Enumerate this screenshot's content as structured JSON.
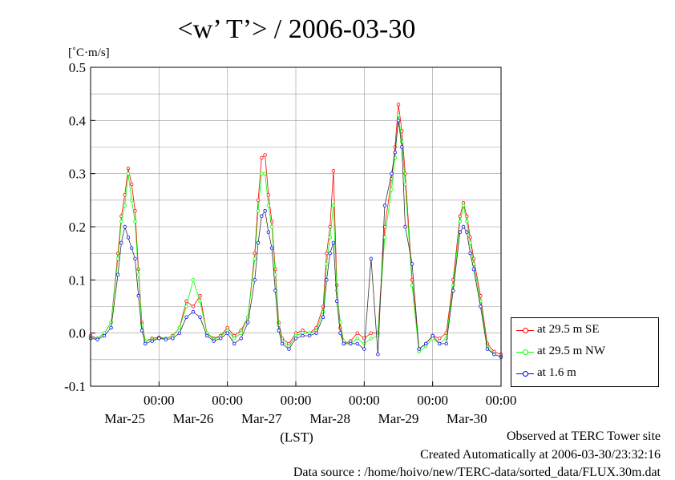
{
  "chart_data": {
    "type": "line",
    "title": "<w’ T’> / 2006-03-30",
    "ylabel": "[˚C·m/s]",
    "xlabel": "(LST)",
    "ylim": [
      -0.1,
      0.5
    ],
    "yticks": [
      "0.5",
      "0.4",
      "0.3",
      "0.2",
      "0.1",
      "0.0",
      "-0.1"
    ],
    "ytick_values": [
      0.5,
      0.4,
      0.3,
      0.2,
      0.1,
      0.0,
      -0.1
    ],
    "xlim": [
      0,
      6
    ],
    "xticks": [
      {
        "time": "00:00",
        "date": "Mar-25",
        "x": 1
      },
      {
        "time": "00:00",
        "date": "Mar-26",
        "x": 2
      },
      {
        "time": "00:00",
        "date": "Mar-27",
        "x": 3
      },
      {
        "time": "00:00",
        "date": "Mar-28",
        "x": 4
      },
      {
        "time": "00:00",
        "date": "Mar-29",
        "x": 5
      },
      {
        "time": "00:00",
        "date": "Mar-30",
        "x": 6
      }
    ],
    "grid": true,
    "legend_position": "right",
    "series": [
      {
        "name": "at 29.5 m SE",
        "color": "#ff0000",
        "points": [
          [
            0.0,
            -0.005
          ],
          [
            0.1,
            -0.01
          ],
          [
            0.2,
            0.0
          ],
          [
            0.3,
            0.02
          ],
          [
            0.4,
            0.15
          ],
          [
            0.45,
            0.22
          ],
          [
            0.5,
            0.26
          ],
          [
            0.55,
            0.31
          ],
          [
            0.6,
            0.28
          ],
          [
            0.65,
            0.23
          ],
          [
            0.7,
            0.12
          ],
          [
            0.75,
            0.02
          ],
          [
            0.8,
            -0.015
          ],
          [
            0.9,
            -0.01
          ],
          [
            1.0,
            -0.008
          ],
          [
            1.1,
            -0.01
          ],
          [
            1.2,
            -0.005
          ],
          [
            1.3,
            0.01
          ],
          [
            1.4,
            0.06
          ],
          [
            1.5,
            0.05
          ],
          [
            1.6,
            0.07
          ],
          [
            1.7,
            0.0
          ],
          [
            1.8,
            -0.01
          ],
          [
            1.9,
            -0.005
          ],
          [
            2.0,
            0.01
          ],
          [
            2.1,
            -0.005
          ],
          [
            2.2,
            0.005
          ],
          [
            2.3,
            0.03
          ],
          [
            2.4,
            0.15
          ],
          [
            2.45,
            0.25
          ],
          [
            2.5,
            0.33
          ],
          [
            2.55,
            0.335
          ],
          [
            2.6,
            0.26
          ],
          [
            2.65,
            0.21
          ],
          [
            2.7,
            0.12
          ],
          [
            2.75,
            0.02
          ],
          [
            2.8,
            -0.01
          ],
          [
            2.9,
            -0.02
          ],
          [
            3.0,
            0.0
          ],
          [
            3.1,
            0.005
          ],
          [
            3.2,
            0.0
          ],
          [
            3.3,
            0.01
          ],
          [
            3.4,
            0.05
          ],
          [
            3.45,
            0.15
          ],
          [
            3.5,
            0.2
          ],
          [
            3.55,
            0.305
          ],
          [
            3.6,
            0.09
          ],
          [
            3.65,
            0.01
          ],
          [
            3.7,
            -0.02
          ],
          [
            3.8,
            -0.015
          ],
          [
            3.9,
            0.0
          ],
          [
            4.0,
            -0.01
          ],
          [
            4.1,
            0.0
          ],
          [
            4.2,
            0.0
          ],
          [
            4.3,
            0.2
          ],
          [
            4.4,
            0.29
          ],
          [
            4.45,
            0.35
          ],
          [
            4.5,
            0.43
          ],
          [
            4.55,
            0.38
          ],
          [
            4.6,
            0.3
          ],
          [
            4.7,
            0.1
          ],
          [
            4.8,
            -0.03
          ],
          [
            4.9,
            -0.02
          ],
          [
            5.0,
            -0.005
          ],
          [
            5.1,
            -0.01
          ],
          [
            5.2,
            0.0
          ],
          [
            5.3,
            0.1
          ],
          [
            5.4,
            0.22
          ],
          [
            5.45,
            0.245
          ],
          [
            5.5,
            0.22
          ],
          [
            5.55,
            0.18
          ],
          [
            5.6,
            0.14
          ],
          [
            5.7,
            0.07
          ],
          [
            5.8,
            -0.02
          ],
          [
            5.9,
            -0.035
          ],
          [
            6.0,
            -0.04
          ]
        ]
      },
      {
        "name": "at 29.5 m NW",
        "color": "#00ff00",
        "points": [
          [
            0.0,
            -0.008
          ],
          [
            0.1,
            -0.01
          ],
          [
            0.2,
            0.0
          ],
          [
            0.3,
            0.02
          ],
          [
            0.4,
            0.14
          ],
          [
            0.45,
            0.21
          ],
          [
            0.5,
            0.24
          ],
          [
            0.55,
            0.3
          ],
          [
            0.6,
            0.25
          ],
          [
            0.65,
            0.21
          ],
          [
            0.7,
            0.11
          ],
          [
            0.75,
            0.015
          ],
          [
            0.8,
            -0.015
          ],
          [
            0.9,
            -0.012
          ],
          [
            1.0,
            -0.01
          ],
          [
            1.1,
            -0.01
          ],
          [
            1.2,
            -0.006
          ],
          [
            1.3,
            0.01
          ],
          [
            1.4,
            0.05
          ],
          [
            1.5,
            0.1
          ],
          [
            1.6,
            0.06
          ],
          [
            1.7,
            0.0
          ],
          [
            1.8,
            -0.012
          ],
          [
            1.9,
            -0.006
          ],
          [
            2.0,
            0.005
          ],
          [
            2.1,
            -0.01
          ],
          [
            2.2,
            0.0
          ],
          [
            2.3,
            0.03
          ],
          [
            2.4,
            0.14
          ],
          [
            2.45,
            0.23
          ],
          [
            2.5,
            0.3
          ],
          [
            2.55,
            0.3
          ],
          [
            2.6,
            0.24
          ],
          [
            2.65,
            0.2
          ],
          [
            2.7,
            0.11
          ],
          [
            2.75,
            0.015
          ],
          [
            2.8,
            -0.015
          ],
          [
            2.9,
            -0.025
          ],
          [
            3.0,
            -0.005
          ],
          [
            3.1,
            0.0
          ],
          [
            3.2,
            0.0
          ],
          [
            3.3,
            0.005
          ],
          [
            3.4,
            0.04
          ],
          [
            3.45,
            0.13
          ],
          [
            3.5,
            0.18
          ],
          [
            3.55,
            0.24
          ],
          [
            3.6,
            0.08
          ],
          [
            3.65,
            0.02
          ],
          [
            3.7,
            -0.015
          ],
          [
            3.8,
            -0.02
          ],
          [
            3.9,
            -0.01
          ],
          [
            4.0,
            -0.02
          ],
          [
            4.1,
            -0.01
          ],
          [
            4.2,
            -0.005
          ],
          [
            4.3,
            0.18
          ],
          [
            4.4,
            0.27
          ],
          [
            4.45,
            0.33
          ],
          [
            4.5,
            0.41
          ],
          [
            4.55,
            0.36
          ],
          [
            4.6,
            0.28
          ],
          [
            4.7,
            0.09
          ],
          [
            4.8,
            -0.035
          ],
          [
            4.9,
            -0.025
          ],
          [
            5.0,
            -0.01
          ],
          [
            5.1,
            -0.02
          ],
          [
            5.2,
            -0.01
          ],
          [
            5.3,
            0.09
          ],
          [
            5.4,
            0.21
          ],
          [
            5.45,
            0.24
          ],
          [
            5.5,
            0.21
          ],
          [
            5.55,
            0.17
          ],
          [
            5.6,
            0.13
          ],
          [
            5.7,
            0.06
          ],
          [
            5.8,
            -0.025
          ],
          [
            5.9,
            -0.04
          ],
          [
            6.0,
            -0.045
          ]
        ]
      },
      {
        "name": "at 1.6 m",
        "color": "#0000ff",
        "points": [
          [
            0.0,
            -0.01
          ],
          [
            0.1,
            -0.012
          ],
          [
            0.2,
            -0.005
          ],
          [
            0.3,
            0.01
          ],
          [
            0.4,
            0.11
          ],
          [
            0.45,
            0.17
          ],
          [
            0.5,
            0.2
          ],
          [
            0.55,
            0.18
          ],
          [
            0.6,
            0.16
          ],
          [
            0.65,
            0.14
          ],
          [
            0.7,
            0.07
          ],
          [
            0.75,
            0.005
          ],
          [
            0.8,
            -0.02
          ],
          [
            0.9,
            -0.015
          ],
          [
            1.0,
            -0.01
          ],
          [
            1.1,
            -0.012
          ],
          [
            1.2,
            -0.01
          ],
          [
            1.3,
            0.0
          ],
          [
            1.4,
            0.03
          ],
          [
            1.5,
            0.04
          ],
          [
            1.6,
            0.03
          ],
          [
            1.7,
            -0.005
          ],
          [
            1.8,
            -0.015
          ],
          [
            1.9,
            -0.01
          ],
          [
            2.0,
            0.0
          ],
          [
            2.1,
            -0.02
          ],
          [
            2.2,
            -0.01
          ],
          [
            2.3,
            0.02
          ],
          [
            2.4,
            0.1
          ],
          [
            2.45,
            0.17
          ],
          [
            2.5,
            0.22
          ],
          [
            2.55,
            0.23
          ],
          [
            2.6,
            0.19
          ],
          [
            2.65,
            0.16
          ],
          [
            2.7,
            0.08
          ],
          [
            2.75,
            0.005
          ],
          [
            2.8,
            -0.02
          ],
          [
            2.9,
            -0.03
          ],
          [
            3.0,
            -0.01
          ],
          [
            3.1,
            -0.005
          ],
          [
            3.2,
            -0.005
          ],
          [
            3.3,
            0.0
          ],
          [
            3.4,
            0.03
          ],
          [
            3.45,
            0.1
          ],
          [
            3.5,
            0.15
          ],
          [
            3.55,
            0.17
          ],
          [
            3.6,
            0.06
          ],
          [
            3.65,
            0.0
          ],
          [
            3.7,
            -0.02
          ],
          [
            3.8,
            -0.02
          ],
          [
            3.9,
            -0.02
          ],
          [
            4.0,
            -0.03
          ],
          [
            4.1,
            0.14
          ],
          [
            4.2,
            -0.04
          ],
          [
            4.3,
            0.24
          ],
          [
            4.4,
            0.3
          ],
          [
            4.45,
            0.34
          ],
          [
            4.5,
            0.4
          ],
          [
            4.55,
            0.35
          ],
          [
            4.6,
            0.2
          ],
          [
            4.7,
            0.13
          ],
          [
            4.8,
            -0.03
          ],
          [
            4.9,
            -0.02
          ],
          [
            5.0,
            -0.005
          ],
          [
            5.1,
            -0.02
          ],
          [
            5.2,
            -0.02
          ],
          [
            5.3,
            0.08
          ],
          [
            5.4,
            0.19
          ],
          [
            5.45,
            0.2
          ],
          [
            5.5,
            0.19
          ],
          [
            5.55,
            0.15
          ],
          [
            5.6,
            0.12
          ],
          [
            5.7,
            0.05
          ],
          [
            5.8,
            -0.03
          ],
          [
            5.9,
            -0.04
          ],
          [
            6.0,
            -0.045
          ]
        ]
      }
    ]
  },
  "footer": {
    "site": "Observed at TERC Tower site",
    "created": "Created Automatically at 2006-03-30/23:32:16",
    "source": "Data source : /home/hoivo/new/TERC-data/sorted_data/FLUX.30m.dat"
  }
}
